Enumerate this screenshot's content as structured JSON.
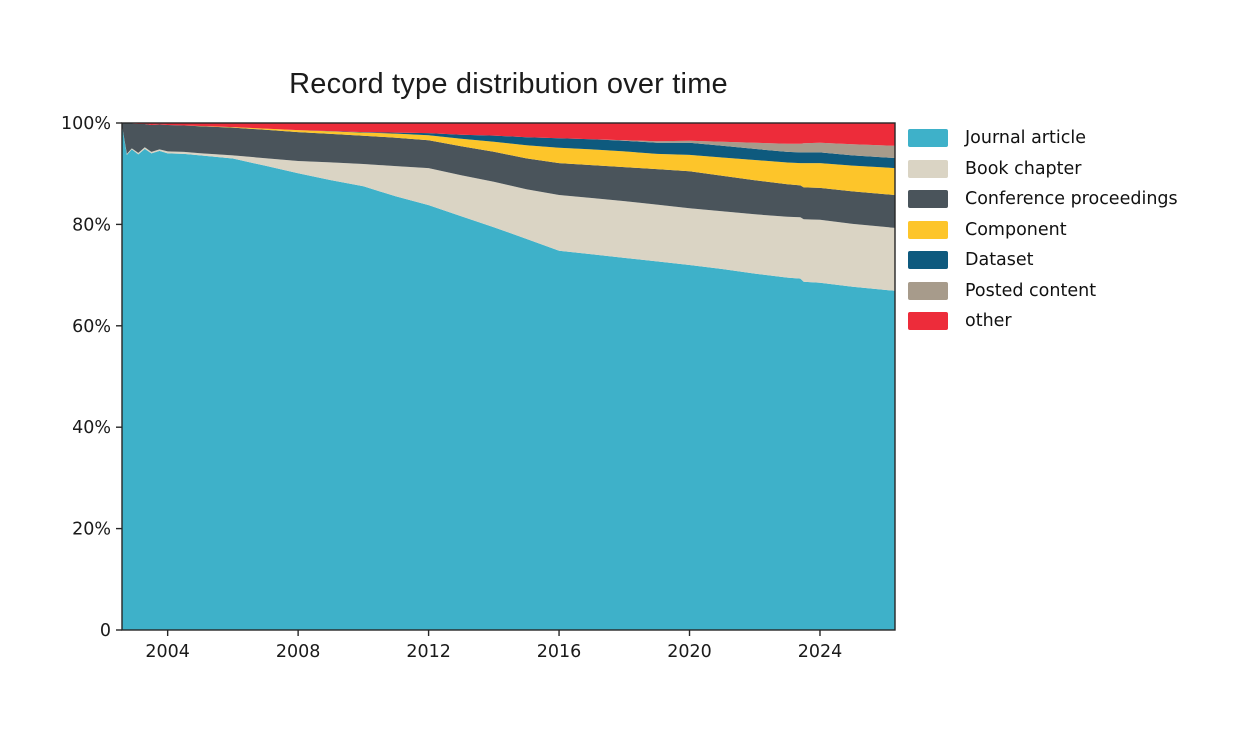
{
  "page": {
    "background": "#ffffff"
  },
  "chart_data": {
    "type": "area",
    "stacked": true,
    "normalized_percent": true,
    "title": "Record type distribution over time",
    "xlabel": "",
    "ylabel": "",
    "grid": false,
    "legend_position": "right",
    "axis_color": "#262626",
    "x_range": [
      2002.6,
      2026.3
    ],
    "y_range": [
      0,
      100
    ],
    "x_axis": {
      "ticks": [
        2004,
        2008,
        2012,
        2016,
        2020,
        2024
      ],
      "labels": [
        "2004",
        "2008",
        "2012",
        "2016",
        "2020",
        "2024"
      ]
    },
    "y_axis": {
      "ticks": [
        0,
        20,
        40,
        60,
        80,
        100
      ],
      "labels": [
        "0",
        "20%",
        "40%",
        "60%",
        "80%",
        "100%"
      ]
    },
    "x": [
      2002.6,
      2002.75,
      2002.9,
      2003.1,
      2003.3,
      2003.5,
      2003.75,
      2004,
      2004.5,
      2005,
      2006,
      2007,
      2008,
      2009,
      2010,
      2011,
      2012,
      2013,
      2014,
      2015,
      2016,
      2017,
      2018,
      2019,
      2020,
      2021,
      2022,
      2023,
      2023.4,
      2023.5,
      2024,
      2025,
      2026.3
    ],
    "series": [
      {
        "name": "Journal article",
        "color": "#3EB1C9",
        "values": [
          99.5,
          93.7,
          94.8,
          93.8,
          94.9,
          94.0,
          94.5,
          94.0,
          93.9,
          93.6,
          93.0,
          91.6,
          90.1,
          88.6,
          87.6,
          85.6,
          83.8,
          81.6,
          79.6,
          77.3,
          74.8,
          74.1,
          73.4,
          72.7,
          72.0,
          71.2,
          70.3,
          69.5,
          69.3,
          68.7,
          68.5,
          67.7,
          66.9
        ]
      },
      {
        "name": "Book chapter",
        "color": "#DAD4C4",
        "values": [
          0,
          0.2,
          0.2,
          0.3,
          0.3,
          0.3,
          0.3,
          0.4,
          0.4,
          0.45,
          0.6,
          1.5,
          2.4,
          3.5,
          4.4,
          6.0,
          7.3,
          8.1,
          9.0,
          9.8,
          11.0,
          11.1,
          11.2,
          11.2,
          11.2,
          11.4,
          11.7,
          12.0,
          12.1,
          12.3,
          12.4,
          12.4,
          12.4
        ]
      },
      {
        "name": "Conference proceedings",
        "color": "#4A545B",
        "values": [
          0.5,
          6.0,
          4.9,
          5.7,
          4.6,
          5.3,
          4.9,
          5.2,
          5.2,
          5.3,
          5.5,
          5.6,
          5.7,
          5.6,
          5.6,
          5.6,
          5.5,
          5.7,
          5.9,
          6.1,
          6.3,
          6.5,
          6.7,
          7.0,
          7.3,
          7.0,
          6.7,
          6.4,
          6.3,
          6.3,
          6.3,
          6.4,
          6.5
        ]
      },
      {
        "name": "Component",
        "color": "#FDC52A",
        "values": [
          0,
          0,
          0,
          0,
          0,
          0,
          0,
          0,
          0,
          0.05,
          0.1,
          0.25,
          0.4,
          0.5,
          0.6,
          0.8,
          1.0,
          1.5,
          2.0,
          2.6,
          3.0,
          3.1,
          3.1,
          3.0,
          3.2,
          3.6,
          4.0,
          4.3,
          4.4,
          4.8,
          4.9,
          5.1,
          5.3
        ]
      },
      {
        "name": "Dataset",
        "color": "#0E5A7E",
        "values": [
          0,
          0,
          0,
          0,
          0,
          0,
          0,
          0,
          0,
          0,
          0,
          0,
          0,
          0.05,
          0.1,
          0.2,
          0.4,
          0.8,
          1.2,
          1.6,
          1.9,
          2.0,
          2.1,
          2.2,
          2.4,
          2.3,
          2.2,
          2.1,
          2.1,
          2.1,
          2.1,
          2.0,
          2.0
        ]
      },
      {
        "name": "Posted content",
        "color": "#A79B8B",
        "values": [
          0,
          0,
          0,
          0,
          0,
          0,
          0,
          0,
          0,
          0,
          0,
          0,
          0,
          0,
          0,
          0,
          0,
          0,
          0,
          0,
          0,
          0,
          0.1,
          0.3,
          0.4,
          0.8,
          1.2,
          1.6,
          1.7,
          1.8,
          1.9,
          2.2,
          2.4
        ]
      },
      {
        "name": "other",
        "color": "#ED2C3A",
        "values": [
          0,
          0.1,
          0.1,
          0.2,
          0.2,
          0.4,
          0.3,
          0.4,
          0.5,
          0.6,
          0.8,
          1.1,
          1.4,
          1.6,
          1.8,
          1.9,
          2.0,
          2.3,
          2.5,
          2.8,
          3.0,
          3.2,
          3.4,
          3.6,
          3.5,
          3.7,
          3.9,
          4.1,
          4.1,
          4.0,
          3.9,
          4.2,
          4.5
        ]
      }
    ]
  }
}
